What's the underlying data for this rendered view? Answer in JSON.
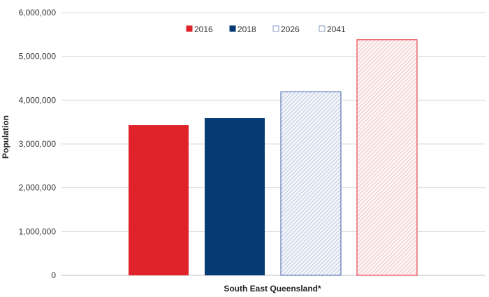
{
  "chart_data": {
    "type": "bar",
    "title": "",
    "xlabel": "South East Queensland*",
    "ylabel": "Population",
    "categories": [
      "South East Queensland*"
    ],
    "series": [
      {
        "name": "2016",
        "values": [
          3430000
        ],
        "color": "#e0232b",
        "fill": "solid"
      },
      {
        "name": "2018",
        "values": [
          3590000
        ],
        "color": "#063a75",
        "fill": "solid"
      },
      {
        "name": "2026",
        "values": [
          4190000
        ],
        "color": "#3b5ea8",
        "fill": "hatched"
      },
      {
        "name": "2041",
        "values": [
          5380000
        ],
        "color": "#e0232b",
        "fill": "hatched"
      }
    ],
    "ylim": [
      0,
      6000000
    ],
    "yticks": [
      "0",
      "1,000,000",
      "2,000,000",
      "3,000,000",
      "4,000,000",
      "5,000,000",
      "6,000,000"
    ],
    "grid": true,
    "legend_position": "top-center"
  }
}
